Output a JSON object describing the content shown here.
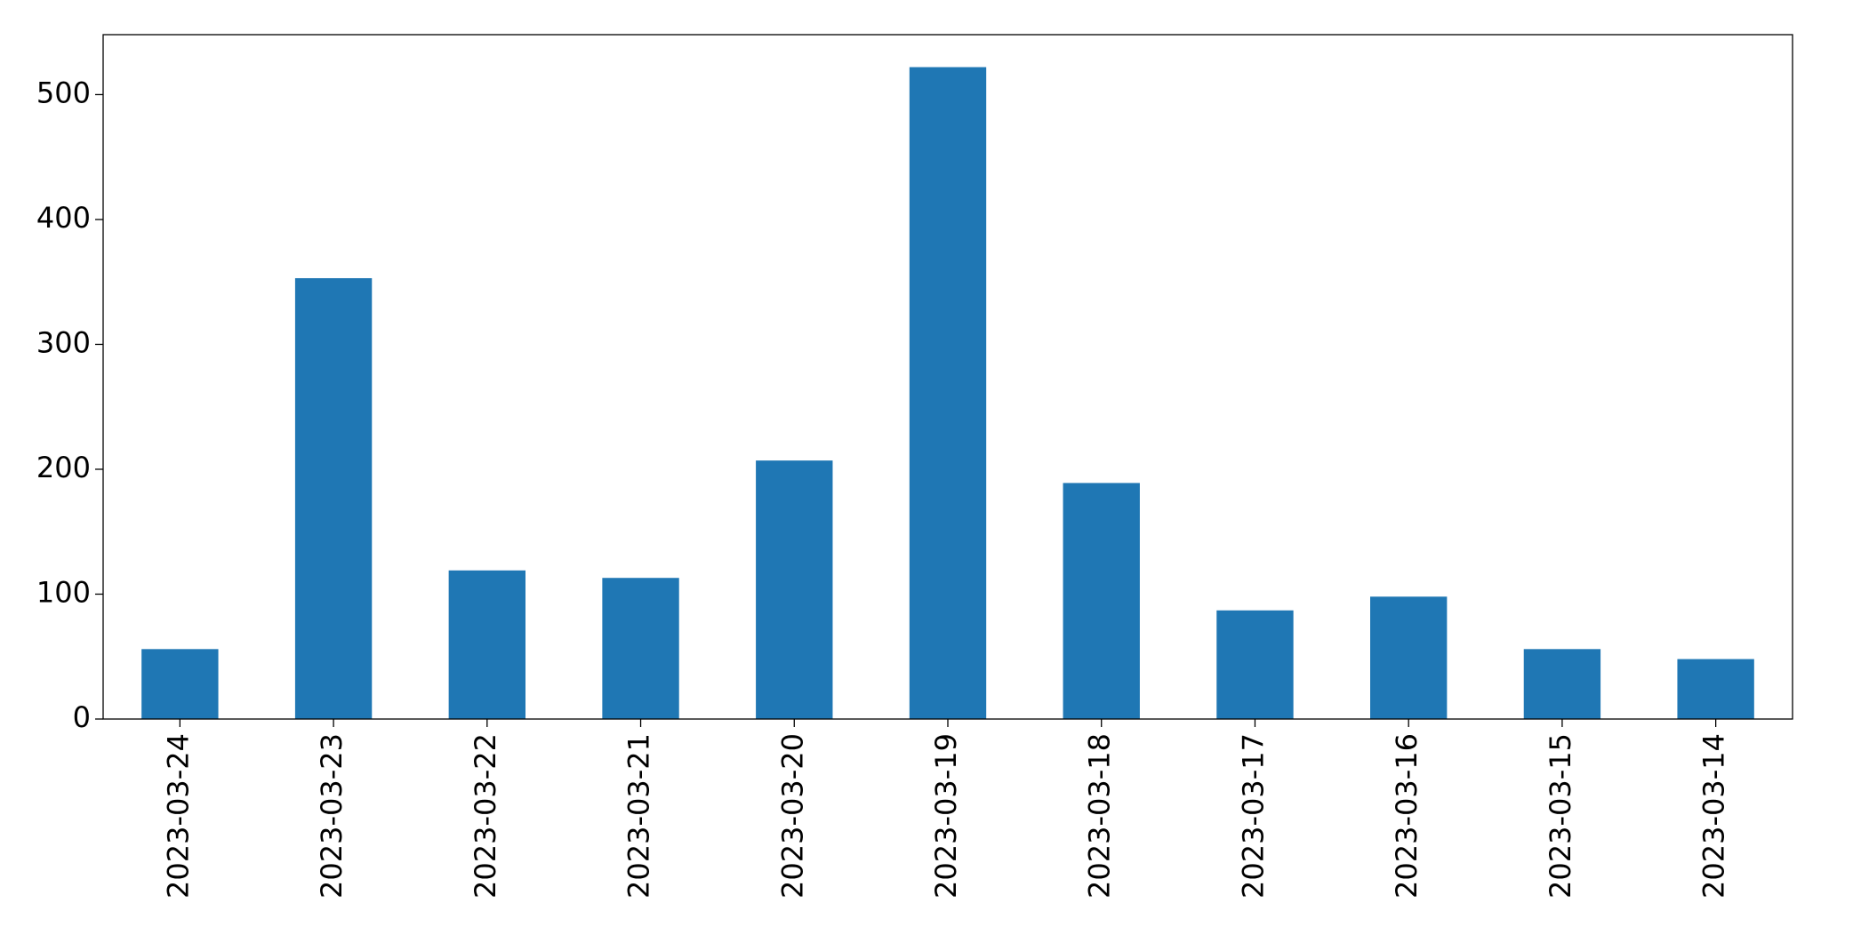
{
  "chart_data": {
    "type": "bar",
    "categories": [
      "2023-03-24",
      "2023-03-23",
      "2023-03-22",
      "2023-03-21",
      "2023-03-20",
      "2023-03-19",
      "2023-03-18",
      "2023-03-17",
      "2023-03-16",
      "2023-03-15",
      "2023-03-14"
    ],
    "values": [
      56,
      353,
      119,
      113,
      207,
      522,
      189,
      87,
      98,
      56,
      48
    ],
    "color": "#1f77b4",
    "ylim": [
      0,
      548
    ],
    "yticks": [
      0,
      100,
      200,
      300,
      400,
      500
    ],
    "grid": false
  }
}
